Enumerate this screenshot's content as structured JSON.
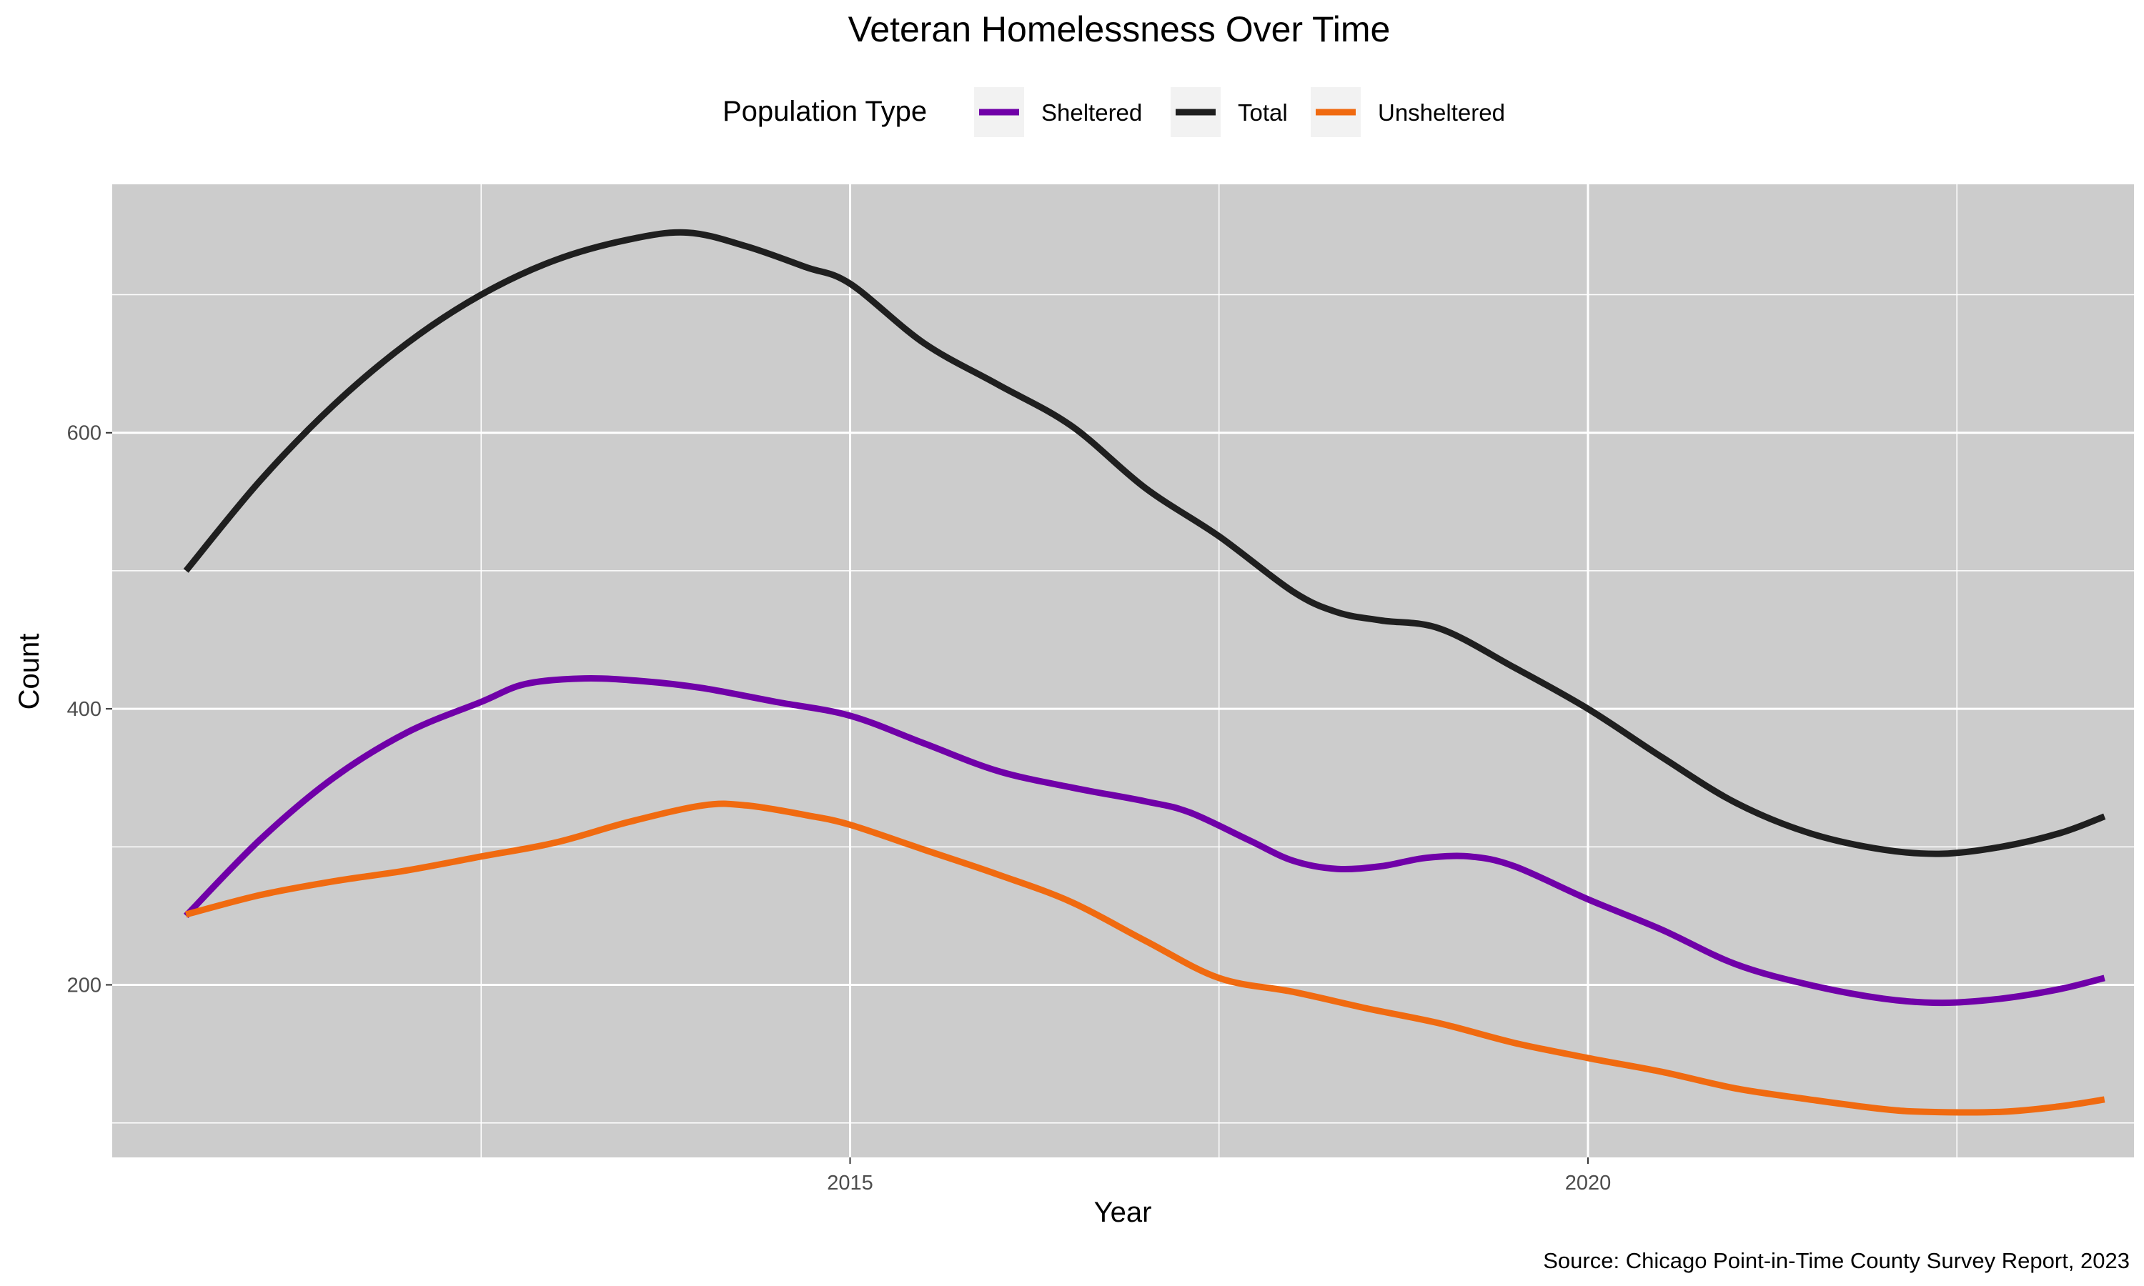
{
  "chart_data": {
    "type": "line",
    "title": "Veteran Homelessness Over Time",
    "xlabel": "Year",
    "ylabel": "Count",
    "caption": "Source: Chicago Point-in-Time County Survey Report, 2023",
    "legend_title": "Population Type",
    "legend_position": "top",
    "grid": true,
    "panel_background": "#cccccc",
    "gridline_color": "#ffffff",
    "xlim": [
      2010.0,
      2023.7
    ],
    "ylim": [
      75,
      780
    ],
    "x_ticks": [
      2015,
      2020
    ],
    "x_tick_labels": [
      "2015",
      "2020"
    ],
    "x_minor_ticks": [
      2012.5,
      2017.5,
      2022.5
    ],
    "y_ticks": [
      200,
      400,
      600
    ],
    "y_tick_labels": [
      "200",
      "400",
      "600"
    ],
    "y_minor_ticks": [
      100,
      300,
      500,
      700
    ],
    "series": [
      {
        "name": "Sheltered",
        "color": "#7000a8",
        "points": [
          [
            2010.5,
            250
          ],
          [
            2011.0,
            305
          ],
          [
            2011.5,
            350
          ],
          [
            2012.0,
            383
          ],
          [
            2012.5,
            405
          ],
          [
            2012.8,
            418
          ],
          [
            2013.2,
            422
          ],
          [
            2013.6,
            420
          ],
          [
            2014.0,
            415
          ],
          [
            2014.5,
            405
          ],
          [
            2015.0,
            395
          ],
          [
            2015.5,
            375
          ],
          [
            2016.0,
            355
          ],
          [
            2016.5,
            343
          ],
          [
            2017.0,
            333
          ],
          [
            2017.3,
            325
          ],
          [
            2017.7,
            305
          ],
          [
            2018.0,
            290
          ],
          [
            2018.3,
            284
          ],
          [
            2018.6,
            286
          ],
          [
            2018.9,
            292
          ],
          [
            2019.2,
            293
          ],
          [
            2019.5,
            286
          ],
          [
            2020.0,
            262
          ],
          [
            2020.5,
            240
          ],
          [
            2021.0,
            215
          ],
          [
            2021.5,
            200
          ],
          [
            2022.0,
            190
          ],
          [
            2022.4,
            187
          ],
          [
            2022.8,
            190
          ],
          [
            2023.2,
            197
          ],
          [
            2023.5,
            205
          ]
        ]
      },
      {
        "name": "Total",
        "color": "#1f1f1f",
        "points": [
          [
            2010.5,
            500
          ],
          [
            2011.0,
            565
          ],
          [
            2011.5,
            620
          ],
          [
            2012.0,
            665
          ],
          [
            2012.5,
            700
          ],
          [
            2013.0,
            725
          ],
          [
            2013.5,
            740
          ],
          [
            2013.9,
            745
          ],
          [
            2014.3,
            735
          ],
          [
            2014.7,
            720
          ],
          [
            2015.0,
            708
          ],
          [
            2015.5,
            665
          ],
          [
            2016.0,
            635
          ],
          [
            2016.5,
            605
          ],
          [
            2017.0,
            560
          ],
          [
            2017.5,
            525
          ],
          [
            2018.0,
            485
          ],
          [
            2018.3,
            470
          ],
          [
            2018.6,
            464
          ],
          [
            2019.0,
            458
          ],
          [
            2019.5,
            430
          ],
          [
            2020.0,
            400
          ],
          [
            2020.5,
            365
          ],
          [
            2021.0,
            332
          ],
          [
            2021.5,
            310
          ],
          [
            2022.0,
            298
          ],
          [
            2022.4,
            295
          ],
          [
            2022.8,
            300
          ],
          [
            2023.2,
            310
          ],
          [
            2023.5,
            322
          ]
        ]
      },
      {
        "name": "Unsheltered",
        "color": "#f06a10",
        "points": [
          [
            2010.5,
            251
          ],
          [
            2011.0,
            265
          ],
          [
            2011.5,
            275
          ],
          [
            2012.0,
            283
          ],
          [
            2012.5,
            293
          ],
          [
            2013.0,
            303
          ],
          [
            2013.5,
            318
          ],
          [
            2014.0,
            330
          ],
          [
            2014.3,
            330
          ],
          [
            2014.7,
            323
          ],
          [
            2015.0,
            316
          ],
          [
            2015.5,
            298
          ],
          [
            2016.0,
            280
          ],
          [
            2016.5,
            260
          ],
          [
            2017.0,
            232
          ],
          [
            2017.5,
            205
          ],
          [
            2018.0,
            195
          ],
          [
            2018.5,
            183
          ],
          [
            2019.0,
            172
          ],
          [
            2019.5,
            158
          ],
          [
            2020.0,
            147
          ],
          [
            2020.5,
            137
          ],
          [
            2021.0,
            125
          ],
          [
            2021.5,
            117
          ],
          [
            2022.0,
            110
          ],
          [
            2022.3,
            108
          ],
          [
            2022.8,
            108
          ],
          [
            2023.2,
            112
          ],
          [
            2023.5,
            117
          ]
        ]
      }
    ]
  }
}
